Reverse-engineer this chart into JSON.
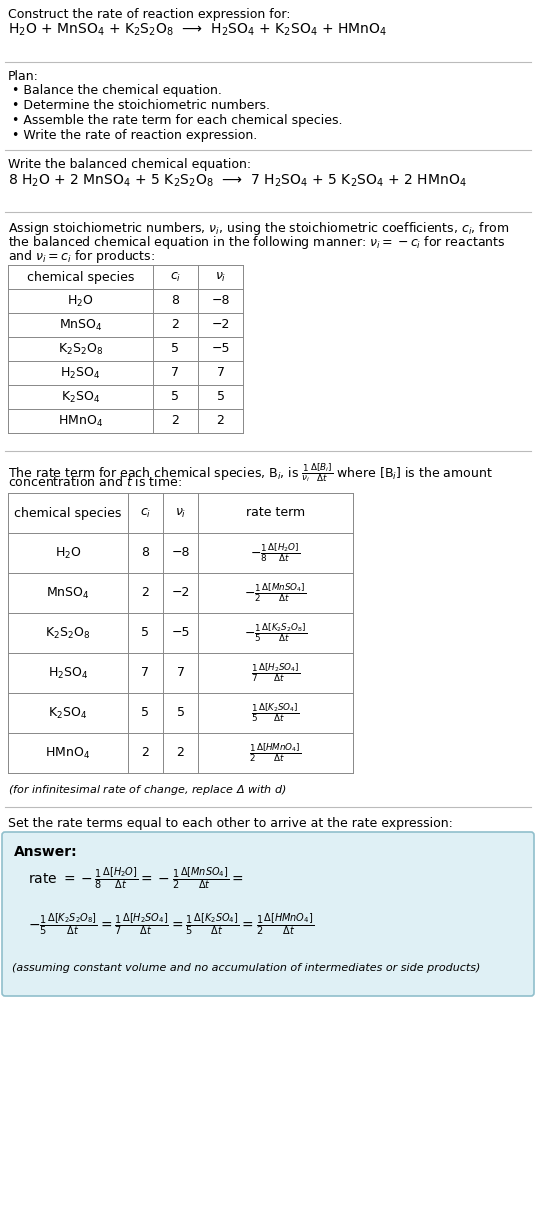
{
  "bg_color": "#ffffff",
  "title_line1": "Construct the rate of reaction expression for:",
  "reaction_unbalanced": "H$_2$O + MnSO$_4$ + K$_2$S$_2$O$_8$  ⟶  H$_2$SO$_4$ + K$_2$SO$_4$ + HMnO$_4$",
  "plan_header": "Plan:",
  "plan_items": [
    "• Balance the chemical equation.",
    "• Determine the stoichiometric numbers.",
    "• Assemble the rate term for each chemical species.",
    "• Write the rate of reaction expression."
  ],
  "balanced_header": "Write the balanced chemical equation:",
  "reaction_balanced": "8 H$_2$O + 2 MnSO$_4$ + 5 K$_2$S$_2$O$_8$  ⟶  7 H$_2$SO$_4$ + 5 K$_2$SO$_4$ + 2 HMnO$_4$",
  "stoich_header_line1": "Assign stoichiometric numbers, $\\nu_i$, using the stoichiometric coefficients, $c_i$, from",
  "stoich_header_line2": "the balanced chemical equation in the following manner: $\\nu_i = -c_i$ for reactants",
  "stoich_header_line3": "and $\\nu_i = c_i$ for products:",
  "table1_headers": [
    "chemical species",
    "$c_i$",
    "$\\nu_i$"
  ],
  "table1_rows": [
    [
      "H$_2$O",
      "8",
      "−8"
    ],
    [
      "MnSO$_4$",
      "2",
      "−2"
    ],
    [
      "K$_2$S$_2$O$_8$",
      "5",
      "−5"
    ],
    [
      "H$_2$SO$_4$",
      "7",
      "7"
    ],
    [
      "K$_2$SO$_4$",
      "5",
      "5"
    ],
    [
      "HMnO$_4$",
      "2",
      "2"
    ]
  ],
  "rate_term_line1": "The rate term for each chemical species, B$_i$, is $\\frac{1}{\\nu_i}\\frac{\\Delta[B_i]}{\\Delta t}$ where [B$_i$] is the amount",
  "rate_term_line2": "concentration and $t$ is time:",
  "table2_headers": [
    "chemical species",
    "$c_i$",
    "$\\nu_i$",
    "rate term"
  ],
  "table2_rows": [
    [
      "H$_2$O",
      "8",
      "−8",
      "$-\\frac{1}{8}\\frac{\\Delta[H_2O]}{\\Delta t}$"
    ],
    [
      "MnSO$_4$",
      "2",
      "−2",
      "$-\\frac{1}{2}\\frac{\\Delta[MnSO_4]}{\\Delta t}$"
    ],
    [
      "K$_2$S$_2$O$_8$",
      "5",
      "−5",
      "$-\\frac{1}{5}\\frac{\\Delta[K_2S_2O_8]}{\\Delta t}$"
    ],
    [
      "H$_2$SO$_4$",
      "7",
      "7",
      "$\\frac{1}{7}\\frac{\\Delta[H_2SO_4]}{\\Delta t}$"
    ],
    [
      "K$_2$SO$_4$",
      "5",
      "5",
      "$\\frac{1}{5}\\frac{\\Delta[K_2SO_4]}{\\Delta t}$"
    ],
    [
      "HMnO$_4$",
      "2",
      "2",
      "$\\frac{1}{2}\\frac{\\Delta[HMnO_4]}{\\Delta t}$"
    ]
  ],
  "infinitesimal_note": "(for infinitesimal rate of change, replace Δ with $d$)",
  "set_equal_header": "Set the rate terms equal to each other to arrive at the rate expression:",
  "answer_box_color": "#dff0f5",
  "answer_box_border": "#90bfcc",
  "answer_label": "Answer:",
  "rate_line1": "rate $= -\\frac{1}{8}\\frac{\\Delta[H_2O]}{\\Delta t} = -\\frac{1}{2}\\frac{\\Delta[MnSO_4]}{\\Delta t} =$",
  "rate_line2": "$-\\frac{1}{5}\\frac{\\Delta[K_2S_2O_8]}{\\Delta t} = \\frac{1}{7}\\frac{\\Delta[H_2SO_4]}{\\Delta t} = \\frac{1}{5}\\frac{\\Delta[K_2SO_4]}{\\Delta t} = \\frac{1}{2}\\frac{\\Delta[HMnO_4]}{\\Delta t}$",
  "assuming_note": "(assuming constant volume and no accumulation of intermediates or side products)",
  "fs": 9.0,
  "fs_small": 8.0,
  "fs_large": 10.0
}
